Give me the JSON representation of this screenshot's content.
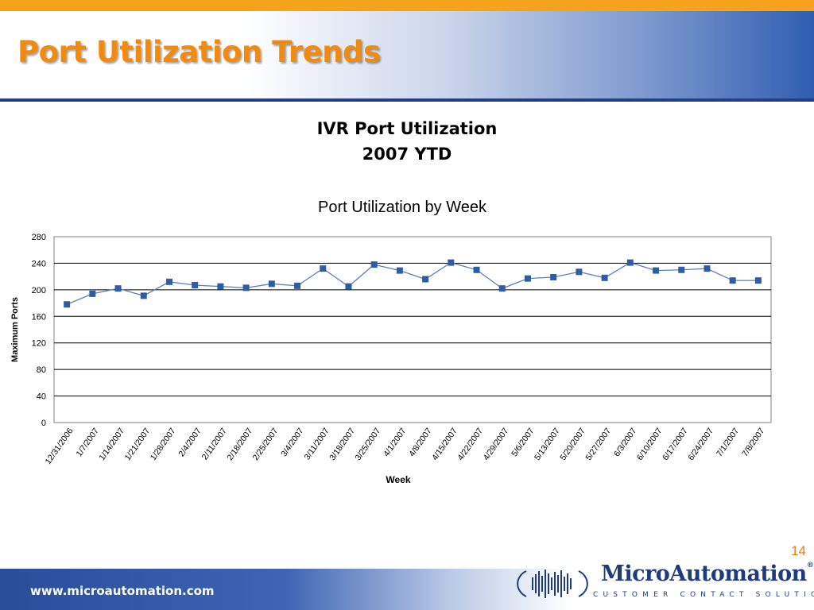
{
  "slide": {
    "title": "Port Utilization Trends",
    "heading_line1": "IVR Port Utilization",
    "heading_line2": "2007 YTD",
    "page_number": "14"
  },
  "footer": {
    "url": "www.microautomation.com",
    "brand": "MicroAutomation",
    "registered": "®",
    "tagline": "CUSTOMER CONTACT SOLUTIONS"
  },
  "colors": {
    "title": "#f28a0e",
    "series": "#5b7fb5",
    "marker": "#2d5ea3",
    "header_rule": "#1f3f8a"
  },
  "chart_data": {
    "type": "line",
    "title": "Port Utilization by Week",
    "xlabel": "Week",
    "ylabel": "Maximum Ports",
    "ylim": [
      0,
      280
    ],
    "yticks": [
      0,
      40,
      80,
      120,
      160,
      200,
      240,
      280
    ],
    "grid": "horizontal",
    "categories": [
      "12/31/2006",
      "1/7/2007",
      "1/14/2007",
      "1/21/2007",
      "1/28/2007",
      "2/4/2007",
      "2/11/2007",
      "2/18/2007",
      "2/25/2007",
      "3/4/2007",
      "3/11/2007",
      "3/18/2007",
      "3/25/2007",
      "4/1/2007",
      "4/8/2007",
      "4/15/2007",
      "4/22/2007",
      "4/29/2007",
      "5/6/2007",
      "5/13/2007",
      "5/20/2007",
      "5/27/2007",
      "6/3/2007",
      "6/10/2007",
      "6/17/2007",
      "6/24/2007",
      "7/1/2007",
      "7/8/2007"
    ],
    "series": [
      {
        "values": [
          178,
          194,
          202,
          191,
          212,
          207,
          205,
          203,
          209,
          206,
          232,
          205,
          238,
          229,
          216,
          241,
          230,
          202,
          217,
          219,
          227,
          218,
          241,
          229,
          230,
          232,
          214,
          214
        ]
      }
    ]
  }
}
